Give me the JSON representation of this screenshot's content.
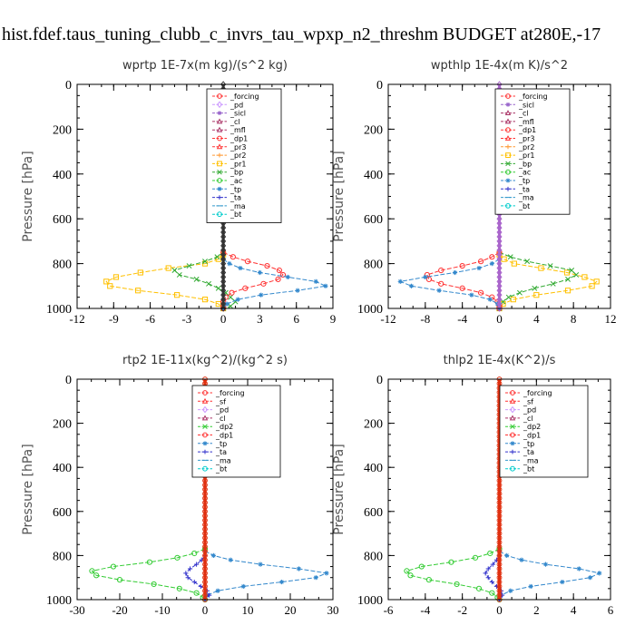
{
  "title": "hist.fdef.taus_tuning_clubb_c_invrs_tau_wpxp_n2_threshm  BUDGET at280E,-17",
  "chart_data": [
    {
      "type": "line",
      "title": "wprtp   1E-7x(m kg)/(s^2 kg)",
      "ylabel": "Pressure [hPa]",
      "xlim": [
        -12,
        9
      ],
      "xticks": [
        -12,
        -9,
        -6,
        -3,
        0,
        3,
        6,
        9
      ],
      "ylim": [
        1000,
        0
      ],
      "yticks": [
        0,
        200,
        400,
        600,
        800,
        1000
      ],
      "legend": [
        "_forcing",
        "_pd",
        "_sicl",
        "_cl",
        "_mfl",
        "_dp1",
        "_pr3",
        "_pr2",
        "_pr1",
        "_bp",
        "_ac",
        "_tp",
        "_ta",
        "_ma",
        "_bt"
      ],
      "series": [
        {
          "name": "_pr1",
          "color": "#ffc000",
          "marker": "square",
          "levels": [
            760,
            780,
            800,
            820,
            840,
            860,
            880,
            900,
            920,
            940,
            960,
            980,
            1000
          ],
          "values": [
            0,
            -0.4,
            -1.5,
            -4.5,
            -6.8,
            -8.8,
            -9.6,
            -9.3,
            -7.0,
            -3.8,
            -1.5,
            -0.4,
            0
          ]
        },
        {
          "name": "_bp",
          "color": "#33aa33",
          "marker": "x",
          "levels": [
            750,
            770,
            790,
            810,
            830,
            850,
            870,
            890,
            910,
            930,
            950,
            970,
            990,
            1000
          ],
          "values": [
            0,
            -0.5,
            -1.5,
            -2.8,
            -4.0,
            -3.6,
            -2.2,
            -1.2,
            -0.4,
            0.2,
            0.6,
            1.0,
            0.6,
            0
          ]
        },
        {
          "name": "_dp1",
          "color": "#ff3333",
          "marker": "circle",
          "levels": [
            750,
            770,
            790,
            810,
            830,
            850,
            870,
            890,
            910,
            930,
            950,
            970,
            990,
            1000
          ],
          "values": [
            0,
            0.8,
            2.0,
            3.6,
            4.6,
            4.9,
            4.5,
            3.3,
            1.8,
            0.7,
            0.2,
            0,
            0,
            0
          ]
        },
        {
          "name": "_tp",
          "color": "#3388cc",
          "marker": "star",
          "levels": [
            780,
            800,
            820,
            840,
            860,
            880,
            900,
            920,
            940,
            960,
            980,
            1000
          ],
          "values": [
            0,
            0.5,
            1.4,
            3.0,
            5.3,
            7.6,
            8.4,
            6.1,
            3.1,
            1.2,
            0.3,
            0
          ]
        },
        {
          "name": "_forcing",
          "color": "#333333",
          "marker": "diamond",
          "levels": [
            0,
            100,
            200,
            300,
            400,
            500,
            600,
            700,
            800,
            900,
            1000
          ],
          "values": [
            0,
            0,
            0,
            0,
            0,
            0,
            0,
            0,
            0,
            0,
            0
          ]
        }
      ]
    },
    {
      "type": "line",
      "title": "wpthlp   1E-4x(m K)/s^2",
      "ylabel": "Pressure [hPa]",
      "xlim": [
        -12,
        12
      ],
      "xticks": [
        -12,
        -8,
        -4,
        0,
        4,
        8,
        12
      ],
      "ylim": [
        1000,
        0
      ],
      "yticks": [
        0,
        200,
        400,
        600,
        800,
        1000
      ],
      "legend": [
        "_forcing",
        "_sicl",
        "_cl",
        "_mfl",
        "_dp1",
        "_pr3",
        "_pr2",
        "_pr1",
        "_bp",
        "_ac",
        "_tp",
        "_ta",
        "_ma",
        "_bt"
      ],
      "series": [
        {
          "name": "_pr1",
          "color": "#ffc000",
          "marker": "square",
          "levels": [
            760,
            780,
            800,
            820,
            840,
            860,
            880,
            900,
            920,
            940,
            960,
            980,
            1000
          ],
          "values": [
            0,
            0.5,
            1.6,
            4.5,
            7.3,
            9.2,
            10.5,
            10.0,
            7.4,
            4.0,
            1.5,
            0.4,
            0
          ]
        },
        {
          "name": "_bp",
          "color": "#33aa33",
          "marker": "x",
          "levels": [
            750,
            770,
            790,
            810,
            830,
            850,
            870,
            890,
            910,
            930,
            950,
            970,
            990,
            1000
          ],
          "values": [
            0,
            1.2,
            3.0,
            5.5,
            7.8,
            8.3,
            7.4,
            5.8,
            3.8,
            2.2,
            1.0,
            0.4,
            0,
            0
          ]
        },
        {
          "name": "_dp1",
          "color": "#ff3333",
          "marker": "circle",
          "levels": [
            750,
            770,
            790,
            810,
            830,
            850,
            870,
            890,
            910,
            930,
            950,
            970,
            990,
            1000
          ],
          "values": [
            0,
            -0.8,
            -2.0,
            -4.0,
            -6.3,
            -7.8,
            -7.6,
            -6.3,
            -4.0,
            -2.0,
            -0.8,
            -0.2,
            0,
            0
          ]
        },
        {
          "name": "_tp",
          "color": "#3388cc",
          "marker": "star",
          "levels": [
            780,
            800,
            820,
            840,
            860,
            880,
            900,
            920,
            940,
            960,
            980,
            1000
          ],
          "values": [
            0,
            -0.8,
            -2.2,
            -4.8,
            -8.0,
            -10.7,
            -9.5,
            -6.5,
            -3.0,
            -1.0,
            -0.2,
            0
          ]
        },
        {
          "name": "_forcing",
          "color": "#aa66cc",
          "marker": "diamond",
          "levels": [
            0,
            100,
            200,
            300,
            400,
            500,
            600,
            700,
            800,
            900,
            1000
          ],
          "values": [
            0,
            0,
            0,
            0,
            0,
            0,
            0,
            0,
            0,
            0,
            0
          ]
        }
      ]
    },
    {
      "type": "line",
      "title": "rtp2   1E-11x(kg^2)/(kg^2 s)",
      "ylabel": "Pressure [hPa]",
      "xlim": [
        -30,
        30
      ],
      "xticks": [
        -30,
        -20,
        -10,
        0,
        10,
        20,
        30
      ],
      "ylim": [
        1000,
        0
      ],
      "yticks": [
        0,
        200,
        400,
        600,
        800,
        1000
      ],
      "legend": [
        "_forcing",
        "_sf",
        "_pd",
        "_cl",
        "_dp2",
        "_dp1",
        "_tp",
        "_ta",
        "_ma",
        "_bt"
      ],
      "series": [
        {
          "name": "_dp1",
          "color": "#33cc33",
          "marker": "circle",
          "levels": [
            770,
            790,
            810,
            830,
            850,
            870,
            890,
            910,
            930,
            950,
            970,
            990,
            1000
          ],
          "values": [
            0,
            -2.5,
            -6.5,
            -13.0,
            -21.5,
            -26.5,
            -25.5,
            -20.0,
            -12.0,
            -6.0,
            -2.0,
            -0.5,
            0
          ]
        },
        {
          "name": "_tp",
          "color": "#3388cc",
          "marker": "star",
          "levels": [
            780,
            800,
            820,
            840,
            860,
            880,
            900,
            920,
            940,
            960,
            980,
            1000
          ],
          "values": [
            0,
            2.0,
            6.0,
            13.0,
            22.0,
            28.5,
            26.0,
            18.0,
            9.0,
            3.0,
            0.5,
            0
          ]
        },
        {
          "name": "_ta",
          "color": "#3333cc",
          "marker": "plus",
          "levels": [
            800,
            820,
            840,
            860,
            880,
            900,
            920,
            940,
            960,
            980,
            1000
          ],
          "values": [
            0,
            -0.8,
            -2.0,
            -3.5,
            -4.5,
            -4.0,
            -2.5,
            -1.0,
            0.5,
            1.0,
            0
          ]
        },
        {
          "name": "_forcing",
          "color": "#e03010",
          "marker": "circle",
          "levels": [
            0,
            100,
            200,
            300,
            400,
            500,
            600,
            700,
            800,
            900,
            1000
          ],
          "values": [
            0,
            0,
            0,
            0,
            0,
            0,
            0,
            0,
            0,
            0,
            0
          ]
        }
      ]
    },
    {
      "type": "line",
      "title": "thlp2   1E-4x(K^2)/s",
      "ylabel": "Pressure [hPa]",
      "xlim": [
        -6.0,
        6.0
      ],
      "xticks": [
        -6.0,
        -4.0,
        -2.0,
        0.0,
        2.0,
        4.0,
        6.0
      ],
      "ylim": [
        1000,
        0
      ],
      "yticks": [
        0,
        200,
        400,
        600,
        800,
        1000
      ],
      "legend": [
        "_forcing",
        "_sf",
        "_pd",
        "_cl",
        "_dp2",
        "_dp1",
        "_tp",
        "_ta",
        "_ma",
        "_bt"
      ],
      "series": [
        {
          "name": "_dp1",
          "color": "#33cc33",
          "marker": "circle",
          "levels": [
            770,
            790,
            810,
            830,
            850,
            870,
            890,
            910,
            930,
            950,
            970,
            990,
            1000
          ],
          "values": [
            0,
            -0.5,
            -1.3,
            -2.6,
            -4.2,
            -5.0,
            -4.8,
            -3.8,
            -2.3,
            -1.1,
            -0.4,
            -0.1,
            0
          ]
        },
        {
          "name": "_tp",
          "color": "#3388cc",
          "marker": "star",
          "levels": [
            780,
            800,
            820,
            840,
            860,
            880,
            900,
            920,
            940,
            960,
            980,
            1000
          ],
          "values": [
            0,
            0.4,
            1.2,
            2.5,
            4.3,
            5.4,
            4.9,
            3.4,
            1.7,
            0.6,
            0.1,
            0
          ]
        },
        {
          "name": "_ta",
          "color": "#3333cc",
          "marker": "plus",
          "levels": [
            800,
            820,
            840,
            860,
            880,
            900,
            920,
            940,
            960,
            980,
            1000
          ],
          "values": [
            0,
            -0.15,
            -0.35,
            -0.6,
            -0.75,
            -0.6,
            -0.4,
            -0.15,
            0.1,
            0.15,
            0
          ]
        },
        {
          "name": "_forcing",
          "color": "#e03010",
          "marker": "circle",
          "levels": [
            0,
            100,
            200,
            300,
            400,
            500,
            600,
            700,
            800,
            900,
            1000
          ],
          "values": [
            0,
            0,
            0,
            0,
            0,
            0,
            0,
            0,
            0,
            0,
            0
          ]
        }
      ]
    }
  ],
  "legend_styles": {
    "_forcing": {
      "color": "#ff3333",
      "marker": "circle"
    },
    "_pd": {
      "color": "#cc99ff",
      "marker": "diamond"
    },
    "_sicl": {
      "color": "#9966cc",
      "marker": "star"
    },
    "_cl": {
      "color": "#aa3366",
      "marker": "tri"
    },
    "_mfl": {
      "color": "#aa3366",
      "marker": "tri"
    },
    "_dp1": {
      "color": "#ff3333",
      "marker": "circle"
    },
    "_pr3": {
      "color": "#ff3333",
      "marker": "tri"
    },
    "_pr2": {
      "color": "#ff9933",
      "marker": "plus"
    },
    "_pr1": {
      "color": "#ffc000",
      "marker": "square"
    },
    "_bp": {
      "color": "#33aa33",
      "marker": "x"
    },
    "_ac": {
      "color": "#33cc33",
      "marker": "circle"
    },
    "_tp": {
      "color": "#3388cc",
      "marker": "star"
    },
    "_ta": {
      "color": "#3333cc",
      "marker": "plus"
    },
    "_ma": {
      "color": "#3399cc",
      "marker": "dash"
    },
    "_bt": {
      "color": "#00cccc",
      "marker": "circle"
    },
    "_sf": {
      "color": "#ff3333",
      "marker": "tri"
    },
    "_dp2": {
      "color": "#33cc33",
      "marker": "x"
    }
  }
}
